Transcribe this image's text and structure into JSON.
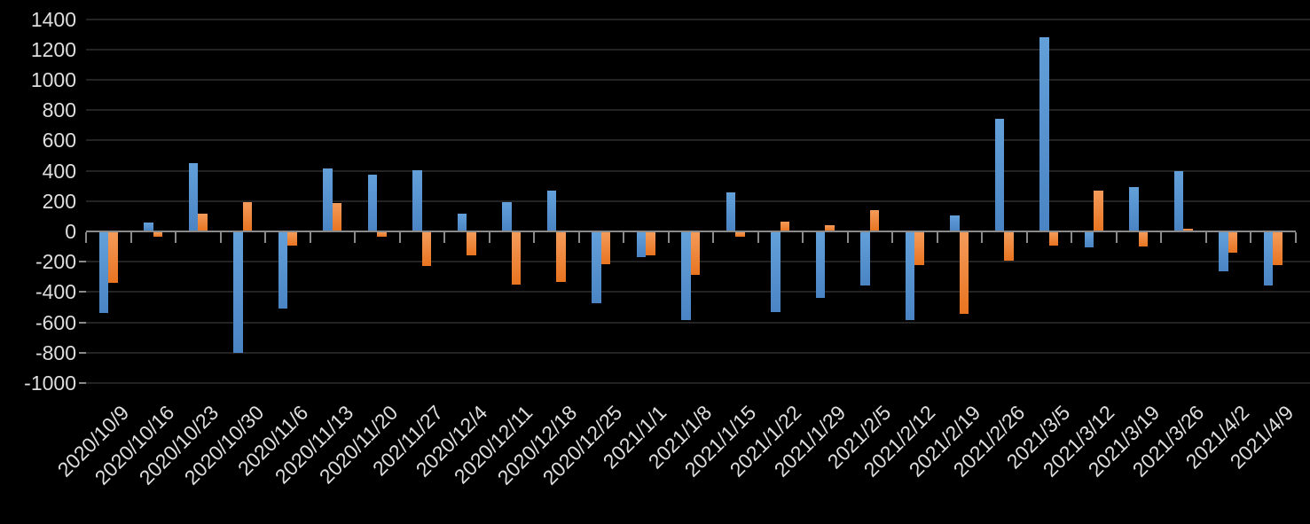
{
  "chart_data": {
    "type": "bar",
    "title": "",
    "xlabel": "",
    "ylabel": "",
    "categories": [
      "2020/10/9",
      "2020/10/16",
      "2020/10/23",
      "2020/10/30",
      "2020/11/6",
      "2020/11/13",
      "2020/11/20",
      "202/11/27",
      "2020/12/4",
      "2020/12/11",
      "2020/12/18",
      "2020/12/25",
      "2021/1/1",
      "2021/1/8",
      "2021/1/15",
      "2021/1/22",
      "2021/1/29",
      "2021/2/5",
      "2021/2/12",
      "2021/2/19",
      "2021/2/26",
      "2021/3/5",
      "2021/3/12",
      "2021/3/19",
      "2021/3/26",
      "2021/4/2",
      "2021/4/9"
    ],
    "series": [
      {
        "name": "blue",
        "color": "#5b9bd5",
        "values": [
          -535,
          60,
          450,
          -795,
          -505,
          415,
          375,
          405,
          115,
          195,
          270,
          -470,
          -165,
          -580,
          255,
          -525,
          -430,
          -350,
          -580,
          105,
          740,
          1280,
          -100,
          290,
          395,
          -260,
          -350
        ]
      },
      {
        "name": "orange",
        "color": "#ed7d31",
        "values": [
          -335,
          -30,
          115,
          195,
          -90,
          190,
          -30,
          -220,
          -150,
          -345,
          -325,
          -210,
          -150,
          -280,
          -30,
          65,
          40,
          140,
          -215,
          -540,
          -190,
          -85,
          270,
          -95,
          15,
          -135,
          -215
        ]
      }
    ],
    "ylim": [
      -1000,
      1400
    ],
    "ytick_step": 200,
    "yticks": [
      1400,
      1200,
      1000,
      800,
      600,
      400,
      200,
      0,
      -200,
      -400,
      -600,
      -800,
      -1000
    ],
    "grid": true,
    "legend": "none",
    "background_color": "#000000",
    "gridline_color": "#232323",
    "axis_color": "#8a8a8a",
    "tick_label_color": "#dedede"
  }
}
